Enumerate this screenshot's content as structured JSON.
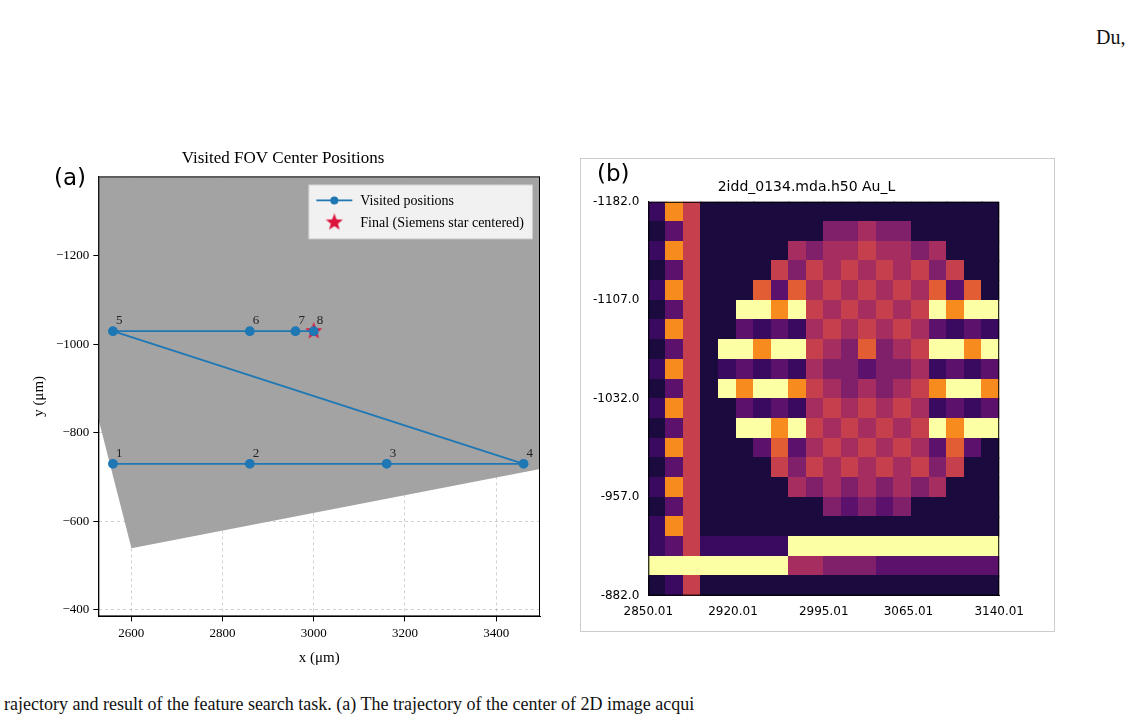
{
  "page": {
    "header": "Du,",
    "caption": "rajectory and result of the feature search task. (a) The trajectory of the center of 2D image acqui"
  },
  "chart_data": [
    {
      "panel": "(a)",
      "type": "line",
      "title": "Visited FOV Center Positions",
      "x_label": "x (μm)",
      "y_label": "y (μm)",
      "xlim": [
        2528,
        3496
      ],
      "xticks": [
        2600,
        2800,
        3000,
        3200,
        3400
      ],
      "ylim": [
        -1380,
        -385
      ],
      "yticks": [
        {
          "value": -1200,
          "label": "−1200"
        },
        {
          "value": -1000,
          "label": "−1000"
        },
        {
          "value": -800,
          "label": "−800"
        },
        {
          "value": -600,
          "label": "−600"
        },
        {
          "value": -400,
          "label": "−400"
        }
      ],
      "grid": true,
      "legend": "upper right",
      "series": [
        {
          "name": "Visited positions",
          "color": "#1f77b4",
          "marker": "circle",
          "line_style": "solid",
          "x": [
            2560,
            2860,
            3160,
            3460,
            2560,
            2860,
            2960,
            3000
          ],
          "values": [
            -730,
            -730,
            -730,
            -730,
            -1030,
            -1030,
            -1030,
            -1030
          ],
          "point_labels": [
            "1",
            "2",
            "3",
            "4",
            "5",
            "6",
            "7",
            "8"
          ]
        },
        {
          "name": "Final (Siemens star centered)",
          "type": "scatter",
          "color": "#dc143c",
          "marker": "star",
          "x": [
            3000
          ],
          "values": [
            -1030
          ]
        }
      ]
    },
    {
      "panel": "(b)",
      "type": "heatmap",
      "title": "2idd_0134.mda.h50 Au_L",
      "xlim": [
        2850.01,
        3140.01
      ],
      "xticks": [
        2850.01,
        2920.01,
        2995.01,
        3065.01,
        3140.01
      ],
      "ylim": [
        -1182,
        -882
      ],
      "yticks": [
        {
          "value": -1182,
          "label": "-1182.0"
        },
        {
          "value": -1107,
          "label": "-1107.0"
        },
        {
          "value": -1032,
          "label": "-1032.0"
        },
        {
          "value": -957,
          "label": "-957.0"
        },
        {
          "value": -882,
          "label": "-882.0"
        }
      ],
      "grid": false,
      "cells": [
        [
          2,
          8,
          6,
          1,
          1,
          1,
          1,
          1,
          1,
          1,
          1,
          1,
          1,
          1,
          1,
          1,
          1,
          1,
          1,
          1
        ],
        [
          1,
          3,
          6,
          1,
          1,
          1,
          1,
          1,
          1,
          1,
          4,
          4,
          5,
          4,
          4,
          1,
          1,
          1,
          1,
          1
        ],
        [
          2,
          8,
          6,
          1,
          1,
          1,
          1,
          1,
          5,
          4,
          5,
          5,
          6,
          5,
          5,
          4,
          5,
          1,
          1,
          1
        ],
        [
          1,
          3,
          6,
          1,
          1,
          1,
          1,
          6,
          4,
          6,
          5,
          6,
          5,
          6,
          5,
          6,
          4,
          6,
          1,
          1
        ],
        [
          2,
          8,
          6,
          1,
          1,
          1,
          7,
          3,
          7,
          5,
          6,
          5,
          6,
          5,
          6,
          5,
          7,
          3,
          7,
          1
        ],
        [
          1,
          3,
          6,
          1,
          1,
          9,
          9,
          8,
          9,
          6,
          5,
          6,
          5,
          6,
          5,
          6,
          9,
          8,
          9,
          9
        ],
        [
          2,
          8,
          6,
          1,
          1,
          3,
          2,
          3,
          2,
          5,
          6,
          5,
          6,
          5,
          6,
          5,
          3,
          2,
          3,
          2
        ],
        [
          1,
          3,
          6,
          1,
          9,
          9,
          8,
          9,
          9,
          6,
          5,
          4,
          7,
          4,
          5,
          6,
          9,
          9,
          8,
          9
        ],
        [
          2,
          8,
          6,
          1,
          2,
          3,
          2,
          3,
          2,
          5,
          4,
          4,
          3,
          4,
          4,
          5,
          2,
          3,
          2,
          3
        ],
        [
          1,
          3,
          6,
          1,
          9,
          8,
          9,
          9,
          8,
          6,
          5,
          4,
          5,
          4,
          5,
          6,
          8,
          9,
          9,
          8
        ],
        [
          2,
          8,
          6,
          1,
          1,
          3,
          2,
          3,
          2,
          5,
          6,
          5,
          6,
          5,
          6,
          5,
          2,
          3,
          2,
          3
        ],
        [
          1,
          3,
          6,
          1,
          1,
          9,
          9,
          8,
          9,
          6,
          5,
          6,
          5,
          6,
          5,
          6,
          9,
          8,
          9,
          9
        ],
        [
          2,
          8,
          6,
          1,
          1,
          1,
          3,
          7,
          3,
          5,
          6,
          5,
          6,
          5,
          6,
          5,
          3,
          7,
          3,
          1
        ],
        [
          1,
          3,
          6,
          1,
          1,
          1,
          1,
          6,
          4,
          6,
          5,
          6,
          5,
          6,
          5,
          6,
          4,
          6,
          1,
          1
        ],
        [
          2,
          8,
          6,
          1,
          1,
          1,
          1,
          1,
          5,
          4,
          5,
          4,
          5,
          4,
          5,
          4,
          5,
          1,
          1,
          1
        ],
        [
          1,
          3,
          6,
          1,
          1,
          1,
          1,
          1,
          1,
          1,
          4,
          3,
          4,
          3,
          4,
          1,
          1,
          1,
          1,
          1
        ],
        [
          2,
          8,
          6,
          1,
          1,
          1,
          1,
          1,
          1,
          1,
          1,
          1,
          1,
          1,
          1,
          1,
          1,
          1,
          1,
          1
        ],
        [
          2,
          3,
          6,
          2,
          2,
          2,
          2,
          2,
          9,
          9,
          9,
          9,
          9,
          9,
          9,
          9,
          9,
          9,
          9,
          9
        ],
        [
          9,
          9,
          9,
          9,
          9,
          9,
          9,
          9,
          5,
          5,
          4,
          4,
          4,
          3,
          3,
          3,
          3,
          3,
          3,
          3
        ],
        [
          1,
          2,
          6,
          1,
          1,
          1,
          1,
          1,
          1,
          1,
          1,
          1,
          1,
          1,
          1,
          1,
          1,
          1,
          1,
          1
        ]
      ]
    }
  ]
}
